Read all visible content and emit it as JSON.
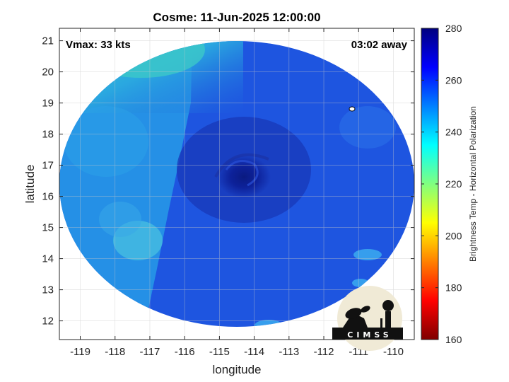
{
  "title": "Cosme: 11-Jun-2025 12:00:00",
  "overlay": {
    "vmax": "Vmax: 33 kts",
    "time_away": "03:02 away"
  },
  "axes": {
    "xlabel": "longitude",
    "ylabel": "latitude",
    "xticks": [
      "-119",
      "-118",
      "-117",
      "-116",
      "-115",
      "-114",
      "-113",
      "-112",
      "-111",
      "-110"
    ],
    "yticks": [
      "12",
      "13",
      "14",
      "15",
      "16",
      "17",
      "18",
      "19",
      "20",
      "21"
    ]
  },
  "colorbar": {
    "label": "Brightness Temp - Horizontal Polarization",
    "ticks": [
      "160",
      "180",
      "200",
      "220",
      "240",
      "260",
      "280"
    ],
    "range": [
      160,
      280
    ],
    "colormap": [
      "#7f0000",
      "#ff0000",
      "#ff8000",
      "#ffff00",
      "#80ff80",
      "#00ffff",
      "#0080ff",
      "#0000ff",
      "#00007f"
    ]
  },
  "logo": {
    "text": "CIMSS"
  }
}
